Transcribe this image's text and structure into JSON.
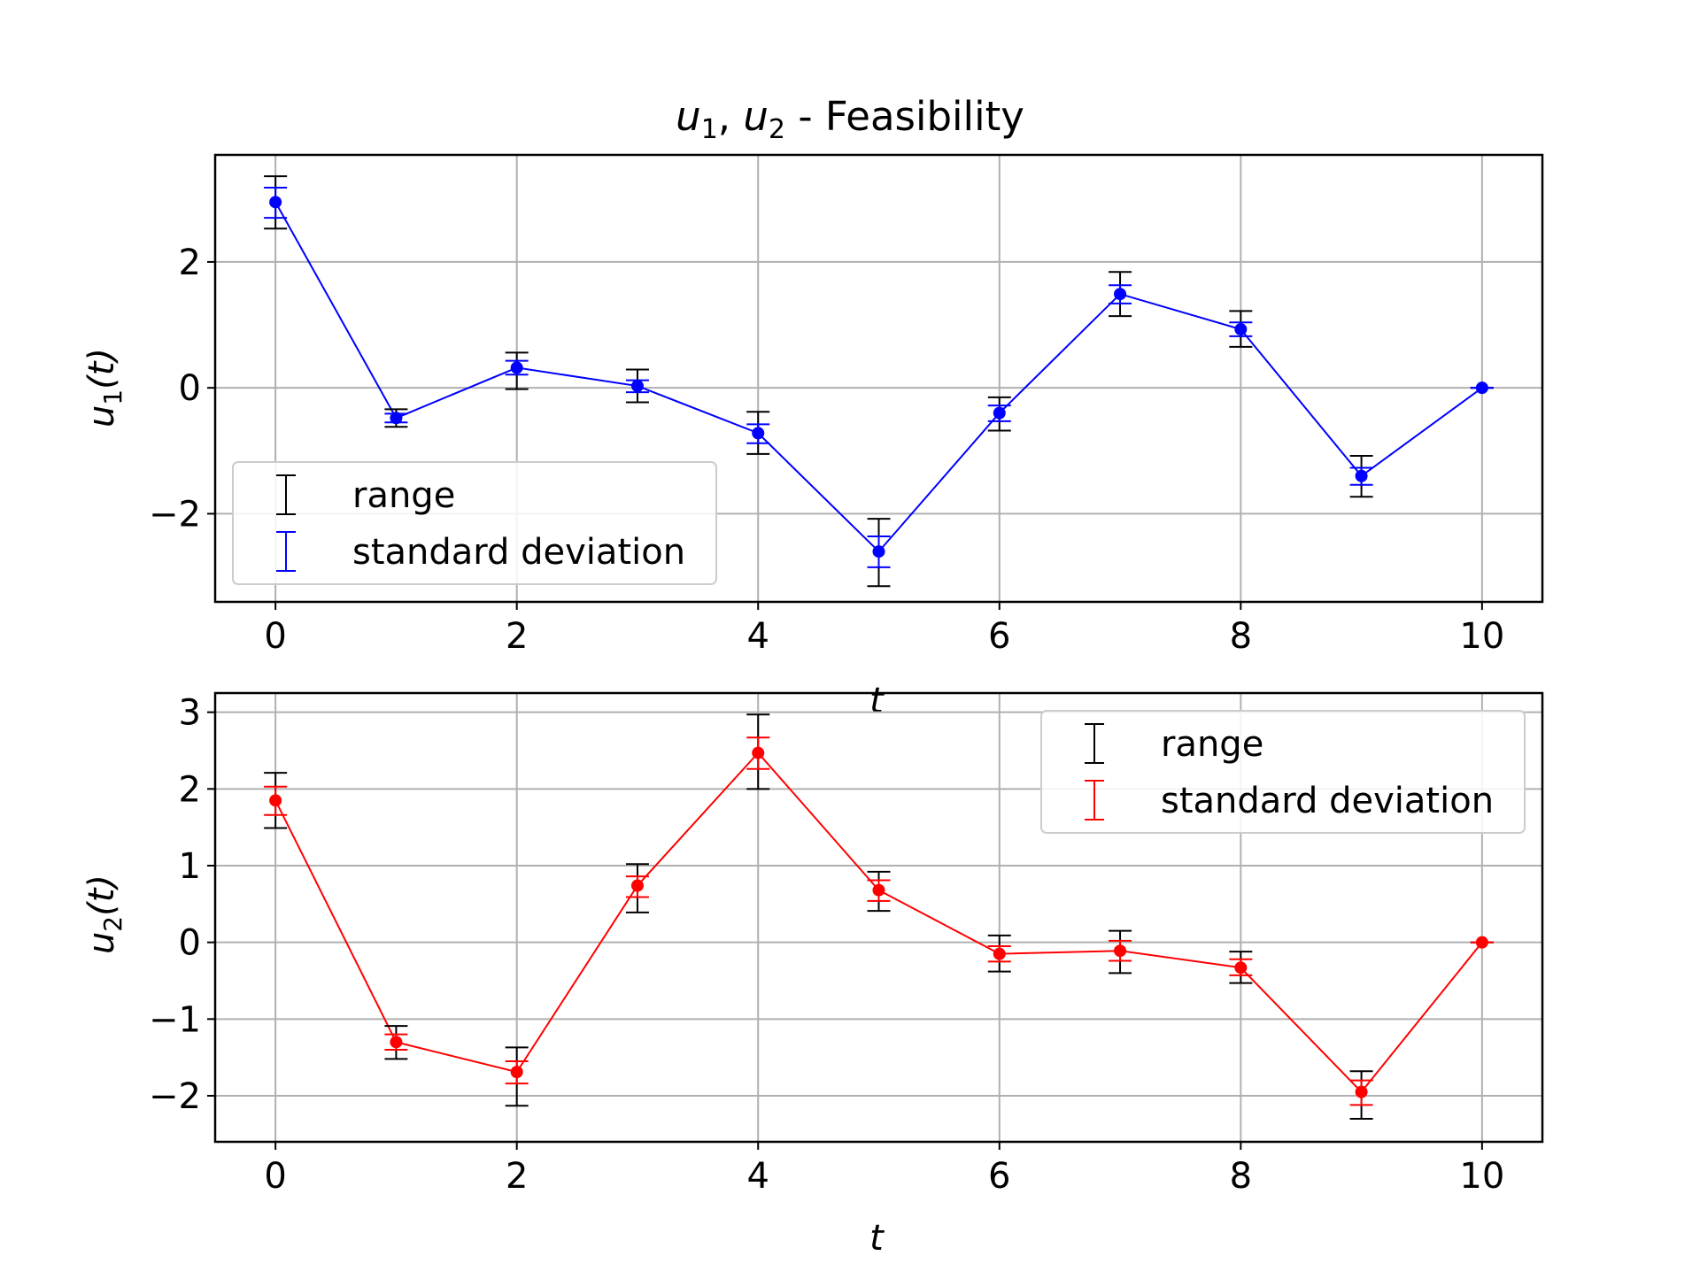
{
  "title": {
    "sym1": "u",
    "sub1": "1",
    "sep": ", ",
    "sym2": "u",
    "sub2": "2",
    "rest": " - Feasibility"
  },
  "colors": {
    "range": "#000000",
    "u1": "#0000ff",
    "u2": "#ff0000",
    "grid": "#b0b0b0"
  },
  "chart_data": [
    {
      "type": "line",
      "name": "u1",
      "xlabel": "t",
      "ylabel": {
        "sym": "u",
        "sub": "1",
        "arg": "(t)"
      },
      "xlim": [
        -0.5,
        10.5
      ],
      "ylim": [
        -3.4,
        3.7
      ],
      "xticks": [
        0,
        2,
        4,
        6,
        8,
        10
      ],
      "yticks": [
        -2,
        0,
        2
      ],
      "grid": true,
      "legend": "lower-left",
      "legend_entries": [
        "range",
        "standard deviation"
      ],
      "x": [
        0,
        1,
        2,
        3,
        4,
        5,
        6,
        7,
        8,
        9,
        10
      ],
      "y": [
        2.95,
        -0.48,
        0.32,
        0.03,
        -0.72,
        -2.6,
        -0.4,
        1.49,
        0.93,
        -1.4,
        0.0
      ],
      "range_low": [
        2.53,
        -0.62,
        -0.02,
        -0.23,
        -1.05,
        -3.15,
        -0.68,
        1.14,
        0.65,
        -1.73,
        0.0
      ],
      "range_high": [
        3.36,
        -0.34,
        0.56,
        0.29,
        -0.38,
        -2.08,
        -0.15,
        1.84,
        1.22,
        -1.08,
        0.0
      ],
      "std_low": [
        2.7,
        -0.55,
        0.21,
        -0.07,
        -0.88,
        -2.85,
        -0.53,
        1.34,
        0.82,
        -1.54,
        0.0
      ],
      "std_high": [
        3.18,
        -0.41,
        0.43,
        0.12,
        -0.58,
        -2.36,
        -0.28,
        1.63,
        1.04,
        -1.27,
        0.0
      ]
    },
    {
      "type": "line",
      "name": "u2",
      "xlabel": "t",
      "ylabel": {
        "sym": "u",
        "sub": "2",
        "arg": "(t)"
      },
      "xlim": [
        -0.5,
        10.5
      ],
      "ylim": [
        -2.6,
        3.25
      ],
      "xticks": [
        0,
        2,
        4,
        6,
        8,
        10
      ],
      "yticks": [
        -2,
        -1,
        0,
        1,
        2,
        3
      ],
      "grid": true,
      "legend": "upper-right",
      "legend_entries": [
        "range",
        "standard deviation"
      ],
      "x": [
        0,
        1,
        2,
        3,
        4,
        5,
        6,
        7,
        8,
        9,
        10
      ],
      "y": [
        1.85,
        -1.3,
        -1.69,
        0.74,
        2.47,
        0.68,
        -0.15,
        -0.11,
        -0.33,
        -1.95,
        0.0
      ],
      "range_low": [
        1.49,
        -1.52,
        -2.13,
        0.39,
        2.0,
        0.41,
        -0.38,
        -0.4,
        -0.53,
        -2.3,
        0.0
      ],
      "range_high": [
        2.21,
        -1.09,
        -1.37,
        1.02,
        2.97,
        0.92,
        0.09,
        0.15,
        -0.12,
        -1.68,
        0.0
      ],
      "std_low": [
        1.66,
        -1.4,
        -1.84,
        0.59,
        2.26,
        0.54,
        -0.25,
        -0.24,
        -0.43,
        -2.12,
        0.0
      ],
      "std_high": [
        2.03,
        -1.2,
        -1.55,
        0.86,
        2.67,
        0.81,
        -0.05,
        0.02,
        -0.22,
        -1.8,
        0.0
      ]
    }
  ]
}
